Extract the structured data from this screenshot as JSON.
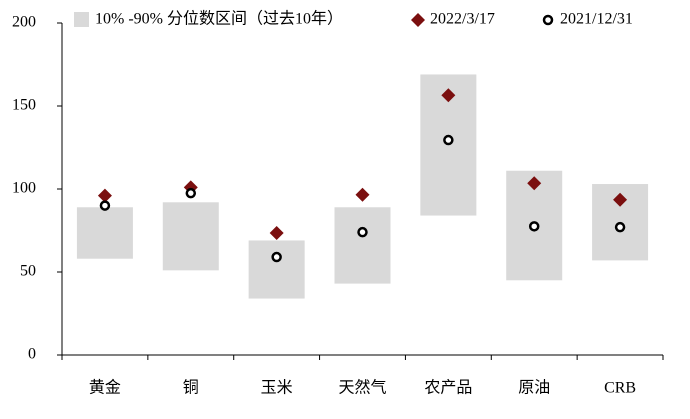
{
  "chart_data": {
    "type": "range",
    "categories": [
      "黄金",
      "铜",
      "玉米",
      "天然气",
      "农产品",
      "原油",
      "CRB"
    ],
    "range": {
      "name": "10% -90% 分位数区间（过去10年）",
      "color": "#d9d9d9",
      "low": [
        58,
        51,
        34,
        43,
        84,
        45,
        57
      ],
      "high": [
        89,
        92,
        69,
        89,
        169,
        111,
        103
      ]
    },
    "series": [
      {
        "name": "2022/3/17",
        "marker": "diamond",
        "color": "#7b0f0f",
        "values": [
          96,
          101,
          73.5,
          96.5,
          156.5,
          103.5,
          93.5
        ]
      },
      {
        "name": "2021/12/31",
        "marker": "circle",
        "color": "#000000",
        "values": [
          90,
          97.5,
          59,
          74,
          129.5,
          77.5,
          77
        ]
      }
    ],
    "ylim": [
      0,
      200
    ],
    "yticks": [
      0,
      50,
      100,
      150,
      200
    ]
  }
}
